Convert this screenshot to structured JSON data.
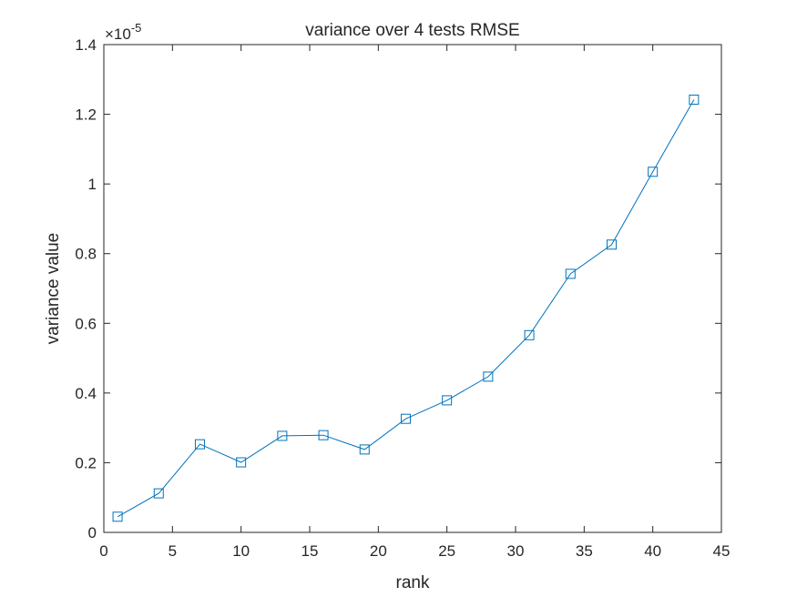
{
  "chart_data": {
    "type": "line",
    "title": "variance over 4 tests RMSE",
    "xlabel": "rank",
    "ylabel": "variance value",
    "y_exponent_label": "×10",
    "y_exponent": "-5",
    "xlim": [
      0,
      45
    ],
    "ylim": [
      0,
      1.4
    ],
    "x_ticks": [
      "0",
      "5",
      "10",
      "15",
      "20",
      "25",
      "30",
      "35",
      "40",
      "45"
    ],
    "y_ticks": [
      "0",
      "0.2",
      "0.4",
      "0.6",
      "0.8",
      "1",
      "1.2",
      "1.4"
    ],
    "grid": false,
    "series": [
      {
        "marker": "square",
        "color": "#0072BD",
        "x": [
          1,
          4,
          7,
          10,
          13,
          16,
          19,
          22,
          25,
          28,
          31,
          34,
          37,
          40,
          43
        ],
        "y": [
          0.045,
          0.112,
          0.253,
          0.201,
          0.277,
          0.279,
          0.238,
          0.326,
          0.379,
          0.447,
          0.566,
          0.742,
          0.826,
          1.035,
          1.242
        ]
      }
    ]
  }
}
